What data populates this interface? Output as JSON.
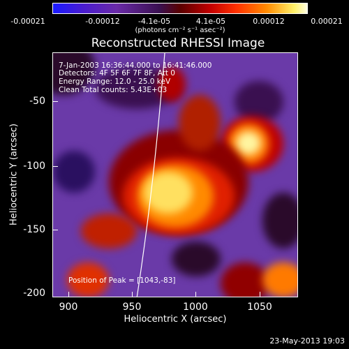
{
  "colorbar": {
    "ticks": [
      "-0.00021",
      "-0.00012",
      "-4.1e-05",
      "4.1e-05",
      "0.00012",
      "0.00021"
    ],
    "unit_line": "(photons cm⁻² s⁻¹ asec⁻²)"
  },
  "title": "Reconstructed RHESSI Image",
  "info": {
    "time": "7-Jan-2003 16:36:44.000 to 16:41:46.000",
    "detectors": "Detectors: 4F 5F 6F 7F 8F, Att 0",
    "energy": "Energy Range: 12.0 - 25.0 keV",
    "clean": "Clean      Total counts: 5.43E+03",
    "peak": "Position of Peak = [1043,-83]"
  },
  "axes": {
    "xlabel": "Heliocentric X (arcsec)",
    "ylabel": "Heliocentric Y (arcsec)",
    "xticks": [
      "900",
      "950",
      "1000",
      "1050"
    ],
    "yticks": [
      "-50",
      "-100",
      "-150",
      "-200"
    ]
  },
  "footer": "23-May-2013 19:03",
  "colors": {
    "background": "#000000",
    "text": "#ffffff"
  }
}
